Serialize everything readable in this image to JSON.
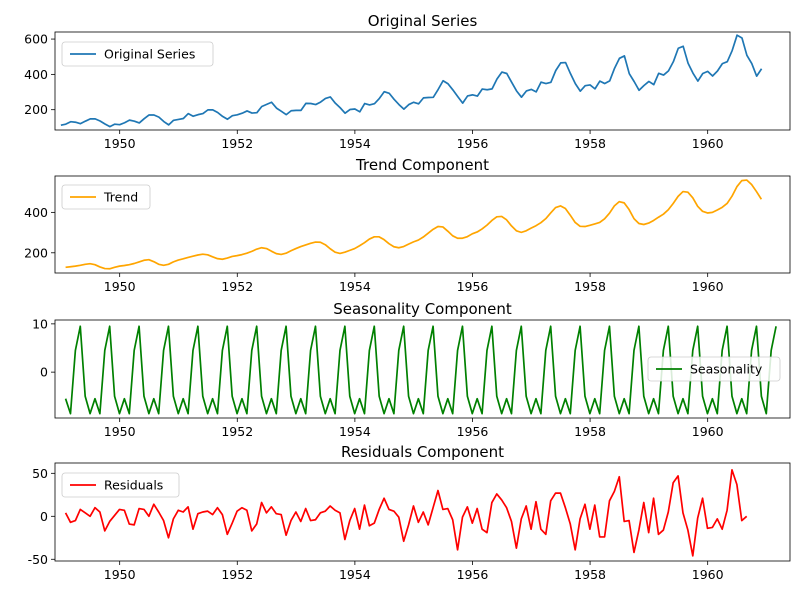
{
  "chart_data": [
    {
      "type": "line",
      "title": "Original Series",
      "xlim": [
        1948.9,
        1961.4
      ],
      "ylim": [
        85,
        640
      ],
      "x_ticks": [
        1950,
        1952,
        1954,
        1956,
        1958,
        1960
      ],
      "y_ticks": [
        200,
        400,
        600
      ],
      "legend_position": "upper-left",
      "series": [
        {
          "name": "Original Series",
          "color": "#1f77b4",
          "x_start": 1949.0,
          "x_step": 0.0833333,
          "values": [
            112,
            118,
            132,
            129,
            121,
            135,
            148,
            148,
            136,
            119,
            104,
            118,
            115,
            126,
            141,
            135,
            125,
            149,
            170,
            170,
            158,
            133,
            114,
            140,
            145,
            150,
            178,
            163,
            172,
            178,
            199,
            199,
            184,
            162,
            146,
            166,
            171,
            180,
            193,
            181,
            183,
            218,
            230,
            242,
            209,
            191,
            172,
            194,
            196,
            196,
            236,
            235,
            229,
            243,
            264,
            272,
            237,
            211,
            180,
            201,
            204,
            188,
            235,
            227,
            234,
            264,
            302,
            293,
            259,
            229,
            203,
            229,
            242,
            233,
            267,
            269,
            270,
            315,
            364,
            347,
            312,
            274,
            237,
            278,
            284,
            277,
            317,
            313,
            318,
            374,
            413,
            405,
            355,
            306,
            271,
            306,
            315,
            301,
            356,
            348,
            355,
            422,
            465,
            467,
            404,
            347,
            305,
            336,
            340,
            318,
            362,
            348,
            363,
            435,
            491,
            505,
            404,
            359,
            310,
            337,
            360,
            342,
            406,
            396,
            420,
            472,
            548,
            559,
            463,
            407,
            362,
            405,
            417,
            391,
            419,
            461,
            472,
            535,
            622,
            606,
            508,
            461,
            390,
            432
          ]
        }
      ]
    },
    {
      "type": "line",
      "title": "Trend Component",
      "xlim": [
        1948.9,
        1961.4
      ],
      "ylim": [
        100,
        580
      ],
      "x_ticks": [
        1950,
        1952,
        1954,
        1956,
        1958,
        1960
      ],
      "y_ticks": [
        200,
        400
      ],
      "legend_position": "upper-left",
      "series": [
        {
          "name": "Trend",
          "color": "#ffa500",
          "x_start": 1949.08,
          "x_step": 0.0833333,
          "values": [
            128,
            131,
            134,
            138,
            143,
            146,
            141,
            130,
            122,
            121,
            128,
            134,
            137,
            141,
            147,
            155,
            163,
            166,
            156,
            143,
            138,
            143,
            155,
            164,
            170,
            177,
            183,
            189,
            193,
            190,
            180,
            171,
            168,
            174,
            182,
            186,
            191,
            198,
            207,
            218,
            225,
            221,
            208,
            196,
            192,
            198,
            210,
            221,
            231,
            239,
            247,
            253,
            252,
            240,
            220,
            203,
            197,
            203,
            212,
            221,
            235,
            250,
            268,
            279,
            279,
            265,
            245,
            230,
            225,
            231,
            243,
            254,
            263,
            278,
            297,
            316,
            330,
            328,
            307,
            284,
            272,
            272,
            280,
            294,
            303,
            318,
            337,
            360,
            378,
            380,
            363,
            333,
            309,
            301,
            309,
            322,
            334,
            349,
            369,
            397,
            424,
            432,
            419,
            386,
            350,
            331,
            330,
            336,
            343,
            350,
            368,
            396,
            432,
            453,
            447,
            414,
            369,
            345,
            340,
            347,
            360,
            376,
            391,
            413,
            444,
            479,
            503,
            500,
            472,
            430,
            405,
            397,
            400,
            412,
            425,
            444,
            480,
            527,
            557,
            560,
            538,
            503,
            465
          ]
        }
      ]
    },
    {
      "type": "line",
      "title": "Seasonality Component",
      "xlim": [
        1948.9,
        1961.4
      ],
      "ylim": [
        -9.5,
        10.8
      ],
      "x_ticks": [
        1950,
        1952,
        1954,
        1956,
        1958,
        1960
      ],
      "y_ticks": [
        0,
        10
      ],
      "legend_position": "center-right",
      "series": [
        {
          "name": "Seasonality",
          "color": "#008000",
          "x_start": 1949.08,
          "x_step": 0.0833333,
          "cycle": [
            -5.5,
            -8.6,
            4.5,
            9.5,
            -5.0,
            -8.6
          ],
          "cycle_count": 24,
          "end_values": [
            4.5,
            9.5
          ]
        }
      ]
    },
    {
      "type": "line",
      "title": "Residuals Component",
      "xlim": [
        1948.9,
        1961.4
      ],
      "ylim": [
        -52,
        62
      ],
      "x_ticks": [
        1950,
        1952,
        1954,
        1956,
        1958,
        1960
      ],
      "y_ticks": [
        -50,
        0,
        50
      ],
      "legend_position": "upper-left",
      "series": [
        {
          "name": "Residuals",
          "color": "#ff0000",
          "x_start": 1949.08,
          "x_step": 0.0833333,
          "values": [
            4,
            -7,
            -5,
            8,
            4,
            0,
            10,
            5,
            -17,
            -6,
            1,
            8,
            7,
            -9,
            -10,
            9,
            8,
            0,
            14,
            5,
            -5,
            -25,
            -3,
            7,
            5,
            11,
            -15,
            3,
            5,
            6,
            2,
            10,
            2,
            -21,
            -8,
            6,
            10,
            7,
            -17,
            -9,
            16,
            4,
            11,
            3,
            2,
            -22,
            -5,
            5,
            -6,
            9,
            -5,
            -4,
            4,
            6,
            12,
            7,
            4,
            -27,
            -5,
            9,
            -15,
            13,
            -11,
            -8,
            8,
            21,
            8,
            6,
            -1,
            -29,
            -10,
            12,
            -7,
            5,
            -10,
            10,
            30,
            8,
            9,
            -4,
            -39,
            -1,
            11,
            -8,
            9,
            -15,
            -19,
            16,
            26,
            19,
            10,
            -6,
            -37,
            -3,
            12,
            -15,
            17,
            -15,
            -21,
            18,
            27,
            27,
            10,
            -9,
            -39,
            -3,
            14,
            -15,
            13,
            -24,
            -24,
            18,
            29,
            46,
            -6,
            -5,
            -42,
            -16,
            16,
            -19,
            21,
            -21,
            -16,
            5,
            39,
            47,
            4,
            -16,
            -46,
            -2,
            21,
            -14,
            -13,
            -3,
            -15,
            7,
            54,
            37,
            -5,
            0
          ]
        }
      ]
    }
  ]
}
